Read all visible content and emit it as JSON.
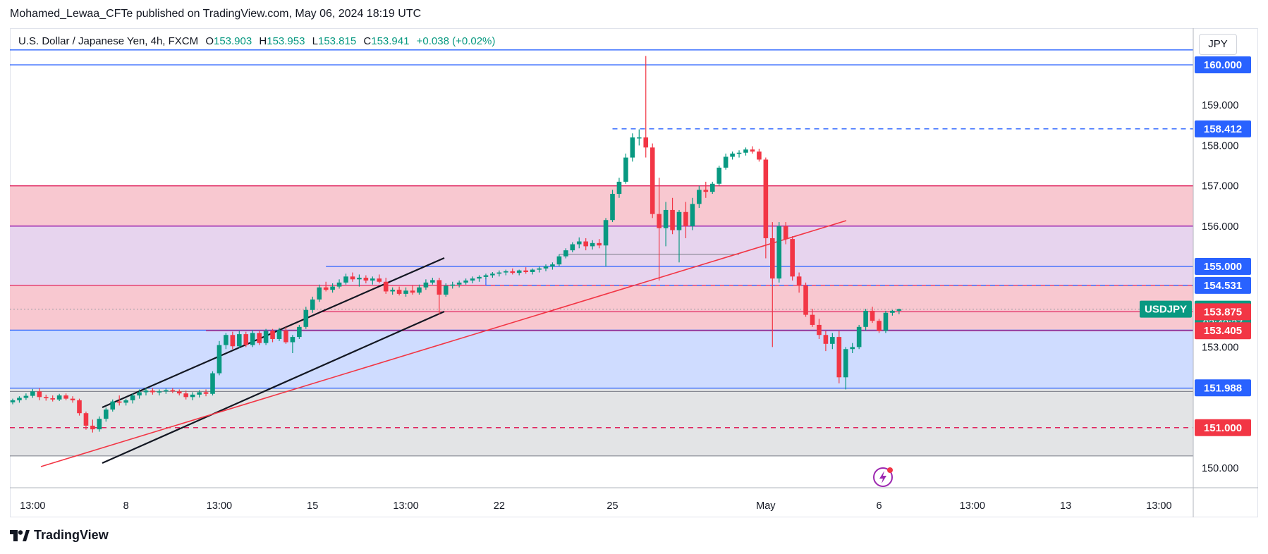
{
  "header": {
    "published": "Mohamed_Lewaa_CFTe published on TradingView.com, May 06, 2024 18:19 UTC"
  },
  "legend": {
    "instrument": "U.S. Dollar / Japanese Yen, 4h, FXCM",
    "open_label": "O",
    "open": "153.903",
    "high_label": "H",
    "high": "153.953",
    "low_label": "L",
    "low": "153.815",
    "close_label": "C",
    "close": "153.941",
    "change": "+0.038 (+0.02%)"
  },
  "currency": "JPY",
  "footer": {
    "brand": "TradingView"
  },
  "colors": {
    "up": "#089981",
    "down": "#f23645",
    "blue_line": "#2962ff",
    "red_line": "#f23645",
    "purple_line": "#9c27b0",
    "channel": "#131722",
    "zone_red": "#f8c8d0",
    "zone_purple": "#e7d4ee",
    "zone_blue": "#cfdcff",
    "zone_gray": "#e3e4e6"
  },
  "chart_data": {
    "type": "candlestick",
    "symbol": "USDJPY",
    "timeframe": "4h",
    "ylim": [
      149.7,
      160.4
    ],
    "y_ticks": [
      "150.000",
      "151.000",
      "152.000",
      "153.000",
      "154.000",
      "155.000",
      "156.000",
      "157.000",
      "158.000",
      "159.000",
      "160.000"
    ],
    "x_ticks": [
      {
        "label": "13:00",
        "idx": 3
      },
      {
        "label": "8",
        "idx": 17
      },
      {
        "label": "13:00",
        "idx": 31
      },
      {
        "label": "15",
        "idx": 45
      },
      {
        "label": "13:00",
        "idx": 59
      },
      {
        "label": "22",
        "idx": 73
      },
      {
        "label": "25",
        "idx": 90
      },
      {
        "label": "May",
        "idx": 113
      },
      {
        "label": "6",
        "idx": 130
      },
      {
        "label": "13:00",
        "idx": 144
      },
      {
        "label": "13",
        "idx": 158
      },
      {
        "label": "13:00",
        "idx": 172
      }
    ],
    "candles": [
      [
        151.63,
        151.72,
        151.58,
        151.68
      ],
      [
        151.68,
        151.78,
        151.62,
        151.74
      ],
      [
        151.74,
        151.85,
        151.69,
        151.79
      ],
      [
        151.79,
        151.96,
        151.74,
        151.9
      ],
      [
        151.9,
        151.98,
        151.68,
        151.76
      ],
      [
        151.76,
        151.82,
        151.67,
        151.73
      ],
      [
        151.73,
        151.8,
        151.65,
        151.7
      ],
      [
        151.7,
        151.84,
        151.66,
        151.8
      ],
      [
        151.8,
        151.85,
        151.68,
        151.72
      ],
      [
        151.72,
        151.78,
        151.62,
        151.68
      ],
      [
        151.68,
        151.72,
        151.3,
        151.36
      ],
      [
        151.36,
        151.4,
        150.95,
        151.05
      ],
      [
        151.05,
        151.2,
        150.88,
        150.96
      ],
      [
        150.96,
        151.28,
        150.9,
        151.22
      ],
      [
        151.22,
        151.5,
        151.15,
        151.45
      ],
      [
        151.45,
        151.7,
        151.4,
        151.65
      ],
      [
        151.65,
        151.8,
        151.55,
        151.62
      ],
      [
        151.62,
        151.72,
        151.55,
        151.68
      ],
      [
        151.68,
        151.85,
        151.6,
        151.8
      ],
      [
        151.8,
        151.95,
        151.72,
        151.88
      ],
      [
        151.88,
        151.98,
        151.8,
        151.92
      ],
      [
        151.92,
        151.98,
        151.82,
        151.88
      ],
      [
        151.88,
        151.95,
        151.8,
        151.9
      ],
      [
        151.9,
        151.97,
        151.84,
        151.93
      ],
      [
        151.93,
        151.98,
        151.86,
        151.9
      ],
      [
        151.9,
        151.95,
        151.8,
        151.85
      ],
      [
        151.85,
        151.92,
        151.7,
        151.76
      ],
      [
        151.76,
        151.88,
        151.68,
        151.82
      ],
      [
        151.82,
        151.93,
        151.75,
        151.88
      ],
      [
        151.88,
        151.95,
        151.78,
        151.84
      ],
      [
        151.84,
        152.4,
        151.8,
        152.35
      ],
      [
        152.35,
        153.15,
        152.3,
        153.05
      ],
      [
        153.05,
        153.35,
        152.95,
        153.3
      ],
      [
        153.3,
        153.38,
        152.95,
        153.02
      ],
      [
        153.02,
        153.4,
        152.98,
        153.32
      ],
      [
        153.32,
        153.38,
        153.0,
        153.05
      ],
      [
        153.05,
        153.42,
        153.0,
        153.35
      ],
      [
        153.35,
        153.4,
        153.05,
        153.1
      ],
      [
        153.1,
        153.45,
        153.05,
        153.4
      ],
      [
        153.4,
        153.45,
        153.12,
        153.2
      ],
      [
        153.2,
        153.48,
        153.15,
        153.42
      ],
      [
        153.42,
        153.5,
        153.08,
        153.12
      ],
      [
        153.12,
        153.3,
        152.85,
        153.25
      ],
      [
        153.25,
        153.55,
        153.2,
        153.5
      ],
      [
        153.5,
        154.0,
        153.45,
        153.92
      ],
      [
        153.92,
        154.25,
        153.85,
        154.18
      ],
      [
        154.18,
        154.55,
        154.12,
        154.48
      ],
      [
        154.48,
        154.62,
        154.38,
        154.42
      ],
      [
        154.42,
        154.58,
        154.35,
        154.5
      ],
      [
        154.5,
        154.68,
        154.45,
        154.6
      ],
      [
        154.6,
        154.82,
        154.55,
        154.75
      ],
      [
        154.75,
        154.85,
        154.62,
        154.68
      ],
      [
        154.68,
        154.8,
        154.5,
        154.72
      ],
      [
        154.72,
        154.78,
        154.58,
        154.65
      ],
      [
        154.65,
        154.75,
        154.55,
        154.7
      ],
      [
        154.7,
        154.8,
        154.58,
        154.62
      ],
      [
        154.62,
        154.72,
        154.32,
        154.38
      ],
      [
        154.38,
        154.48,
        154.3,
        154.42
      ],
      [
        154.42,
        154.5,
        154.28,
        154.32
      ],
      [
        154.32,
        154.48,
        154.25,
        154.4
      ],
      [
        154.4,
        154.52,
        154.3,
        154.35
      ],
      [
        154.35,
        154.55,
        154.3,
        154.48
      ],
      [
        154.48,
        154.68,
        154.42,
        154.6
      ],
      [
        154.6,
        154.72,
        154.55,
        154.66
      ],
      [
        154.66,
        154.72,
        153.8,
        154.3
      ],
      [
        154.3,
        154.58,
        154.25,
        154.52
      ],
      [
        154.52,
        154.62,
        154.45,
        154.55
      ],
      [
        154.55,
        154.65,
        154.48,
        154.6
      ],
      [
        154.6,
        154.7,
        154.55,
        154.65
      ],
      [
        154.65,
        154.75,
        154.58,
        154.7
      ],
      [
        154.7,
        154.78,
        154.62,
        154.74
      ],
      [
        154.74,
        154.82,
        154.68,
        154.78
      ],
      [
        154.78,
        154.86,
        154.72,
        154.82
      ],
      [
        154.82,
        154.9,
        154.75,
        154.85
      ],
      [
        154.85,
        154.92,
        154.78,
        154.88
      ],
      [
        154.88,
        154.95,
        154.8,
        154.84
      ],
      [
        154.84,
        154.92,
        154.78,
        154.9
      ],
      [
        154.9,
        154.98,
        154.82,
        154.86
      ],
      [
        154.86,
        154.95,
        154.8,
        154.92
      ],
      [
        154.92,
        155.0,
        154.85,
        154.95
      ],
      [
        154.95,
        155.05,
        154.88,
        155.0
      ],
      [
        155.0,
        155.1,
        154.92,
        155.05
      ],
      [
        155.05,
        155.3,
        155.0,
        155.25
      ],
      [
        155.25,
        155.45,
        155.2,
        155.4
      ],
      [
        155.4,
        155.6,
        155.35,
        155.55
      ],
      [
        155.55,
        155.72,
        155.45,
        155.62
      ],
      [
        155.62,
        155.7,
        155.4,
        155.5
      ],
      [
        155.5,
        155.65,
        155.42,
        155.58
      ],
      [
        155.58,
        155.68,
        155.45,
        155.52
      ],
      [
        155.52,
        156.2,
        155.0,
        156.15
      ],
      [
        156.15,
        156.9,
        156.1,
        156.8
      ],
      [
        156.8,
        157.2,
        156.7,
        157.1
      ],
      [
        157.1,
        157.8,
        157.05,
        157.7
      ],
      [
        157.7,
        158.3,
        157.6,
        158.2
      ],
      [
        158.2,
        158.4,
        158.0,
        158.2
      ],
      [
        158.2,
        160.22,
        157.7,
        157.95
      ],
      [
        157.95,
        158.05,
        156.2,
        156.3
      ],
      [
        156.3,
        157.2,
        154.65,
        155.95
      ],
      [
        155.95,
        156.6,
        155.5,
        156.4
      ],
      [
        156.4,
        156.7,
        155.8,
        155.9
      ],
      [
        155.9,
        156.4,
        155.1,
        156.35
      ],
      [
        156.35,
        156.6,
        155.7,
        156.0
      ],
      [
        156.0,
        156.7,
        155.9,
        156.55
      ],
      [
        156.55,
        157.0,
        156.45,
        156.9
      ],
      [
        156.9,
        157.1,
        156.7,
        156.85
      ],
      [
        156.85,
        157.1,
        156.8,
        157.05
      ],
      [
        157.05,
        157.5,
        157.0,
        157.45
      ],
      [
        157.45,
        157.8,
        157.4,
        157.72
      ],
      [
        157.72,
        157.85,
        157.65,
        157.8
      ],
      [
        157.8,
        157.88,
        157.7,
        157.82
      ],
      [
        157.82,
        157.95,
        157.75,
        157.9
      ],
      [
        157.9,
        157.98,
        157.8,
        157.85
      ],
      [
        157.85,
        157.92,
        157.6,
        157.65
      ],
      [
        157.65,
        157.7,
        155.2,
        155.7
      ],
      [
        155.7,
        156.1,
        153.0,
        154.7
      ],
      [
        154.7,
        156.1,
        154.6,
        156.0
      ],
      [
        156.0,
        156.1,
        155.55,
        155.68
      ],
      [
        155.68,
        155.75,
        154.65,
        154.75
      ],
      [
        154.75,
        154.85,
        154.35,
        154.52
      ],
      [
        154.52,
        154.6,
        153.75,
        153.8
      ],
      [
        153.8,
        153.95,
        153.5,
        153.55
      ],
      [
        153.55,
        153.7,
        153.2,
        153.3
      ],
      [
        153.3,
        153.4,
        152.9,
        153.08
      ],
      [
        153.08,
        153.35,
        152.95,
        153.25
      ],
      [
        153.25,
        153.4,
        152.1,
        152.25
      ],
      [
        152.25,
        153.0,
        151.95,
        152.95
      ],
      [
        152.95,
        153.1,
        152.85,
        153.0
      ],
      [
        153.0,
        153.55,
        152.95,
        153.5
      ],
      [
        153.5,
        153.95,
        153.4,
        153.9
      ],
      [
        153.9,
        154.0,
        153.6,
        153.65
      ],
      [
        153.65,
        153.7,
        153.35,
        153.4
      ],
      [
        153.4,
        153.9,
        153.35,
        153.85
      ],
      [
        153.85,
        153.92,
        153.78,
        153.9
      ],
      [
        153.9,
        153.953,
        153.815,
        153.941
      ]
    ],
    "levels": [
      {
        "price": 160.0,
        "label": "160.000",
        "color": "#2962ff"
      },
      {
        "price": 158.412,
        "label": "158.412",
        "color": "#2962ff",
        "style": "dashed"
      },
      {
        "price": 155.0,
        "label": "155.000",
        "color": "#2962ff"
      },
      {
        "price": 154.531,
        "label": "154.531",
        "color": "#2962ff",
        "style": "dashed"
      },
      {
        "price": 153.941,
        "label": "153.941",
        "color": "#089981",
        "extra": "02:40:27",
        "symbol": "USDJPY"
      },
      {
        "price": 153.875,
        "label": "153.875",
        "color": "#f23645"
      },
      {
        "price": 153.405,
        "label": "153.405",
        "color": "#f23645"
      },
      {
        "price": 151.988,
        "label": "151.988",
        "color": "#2962ff"
      },
      {
        "price": 151.0,
        "label": "151.000",
        "color": "#f23645",
        "style": "dashed"
      }
    ],
    "zones": [
      {
        "from": 156.0,
        "to": 157.0,
        "color": "#f8c8d0"
      },
      {
        "from": 154.54,
        "to": 156.0,
        "color": "#e7d4ee"
      },
      {
        "from": 153.42,
        "to": 154.54,
        "color": "#f8c8d0"
      },
      {
        "from": 151.98,
        "to": 153.42,
        "color": "#cfdcff"
      },
      {
        "from": 150.3,
        "to": 151.98,
        "color": "#e3e4e6"
      }
    ]
  }
}
